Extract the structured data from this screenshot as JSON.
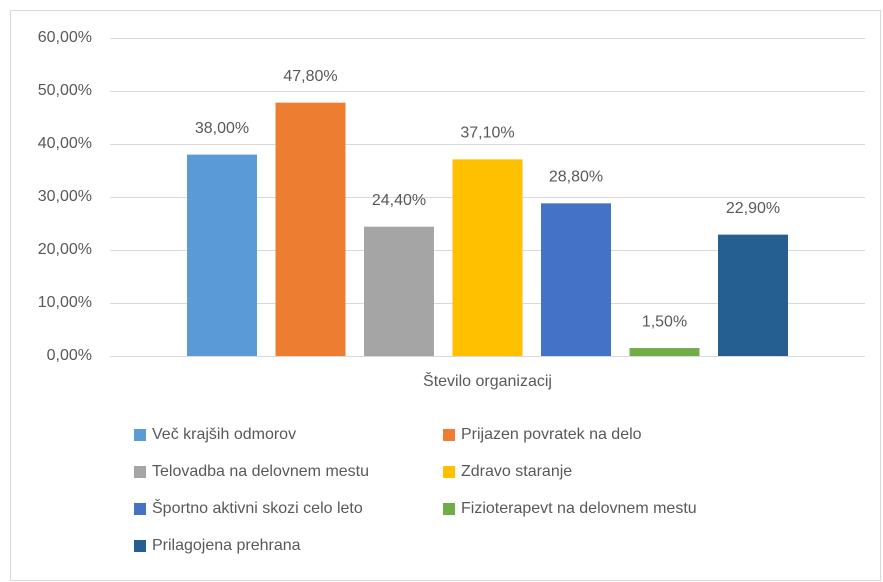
{
  "chart_data": {
    "type": "bar",
    "categories": [
      "Število organizacij"
    ],
    "series": [
      {
        "name": "Več krajših odmorov",
        "color": "#5b9bd5",
        "values": [
          38.0
        ],
        "value_labels": [
          "38,00%"
        ]
      },
      {
        "name": "Prijazen povratek na delo",
        "color": "#ed7d31",
        "values": [
          47.8
        ],
        "value_labels": [
          "47,80%"
        ]
      },
      {
        "name": "Telovadba na delovnem mestu",
        "color": "#a5a5a5",
        "values": [
          24.4
        ],
        "value_labels": [
          "24,40%"
        ]
      },
      {
        "name": "Zdravo staranje",
        "color": "#ffc000",
        "values": [
          37.1
        ],
        "value_labels": [
          "37,10%"
        ]
      },
      {
        "name": "Športno aktivni skozi celo leto",
        "color": "#4472c4",
        "values": [
          28.8
        ],
        "value_labels": [
          "28,80%"
        ]
      },
      {
        "name": "Fizioterapevt na delovnem mestu",
        "color": "#70ad47",
        "values": [
          1.5
        ],
        "value_labels": [
          "1,50%"
        ]
      },
      {
        "name": "Prilagojena prehrana",
        "color": "#255e91",
        "values": [
          22.9
        ],
        "value_labels": [
          "22,90%"
        ]
      }
    ],
    "ylim": [
      0,
      60
    ],
    "yticks": [
      {
        "value": 0,
        "label": "0,00%"
      },
      {
        "value": 10,
        "label": "10,00%"
      },
      {
        "value": 20,
        "label": "20,00%"
      },
      {
        "value": 30,
        "label": "30,00%"
      },
      {
        "value": 40,
        "label": "40,00%"
      },
      {
        "value": 50,
        "label": "50,00%"
      },
      {
        "value": 60,
        "label": "60,00%"
      }
    ],
    "grid": true,
    "legend": "bottom"
  }
}
